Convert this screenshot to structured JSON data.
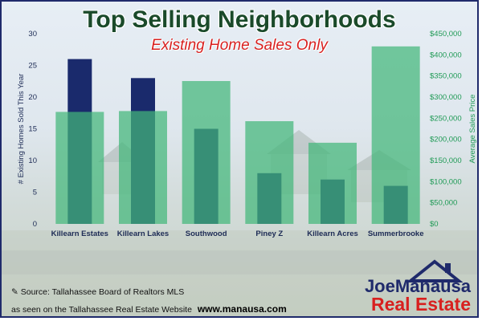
{
  "title": "Top Selling Neighborhoods",
  "subtitle": "Existing Home Sales Only",
  "source_line": "Source: Tallahassee Board of Realtors MLS",
  "seen_on_line": "as seen on the Tallahassee Real Estate Website",
  "website": "www.manausa.com",
  "logo": {
    "name": "JoeManausa",
    "sub": "Real Estate"
  },
  "colors": {
    "sales_bar": "#1a2a6c",
    "price_bar": "#43b77a",
    "left_axis": "#1d2b55",
    "right_axis": "#1f9a55",
    "title": "#1a4a2a",
    "subtitle": "#d8201f"
  },
  "chart_data": {
    "type": "bar",
    "categories": [
      "Killearn Estates",
      "Killearn Lakes",
      "Southwood",
      "Piney Z",
      "Killearn Acres",
      "Summerbrooke"
    ],
    "series": [
      {
        "axis": "left",
        "values": [
          26,
          23,
          15,
          8,
          7,
          6
        ]
      },
      {
        "axis": "right",
        "values": [
          265000,
          267000,
          338000,
          243000,
          192000,
          420000
        ]
      }
    ],
    "ylabel": "# Existing Homes Sold This Year",
    "ylabel_right": "Average Sales Price",
    "ylim": [
      0,
      30
    ],
    "ylim_right": [
      0,
      450000
    ],
    "yticks": [
      "0",
      "5",
      "10",
      "15",
      "20",
      "25",
      "30"
    ],
    "yticks_right": [
      "$0",
      "$50,000",
      "$100,000",
      "$150,000",
      "$200,000",
      "$250,000",
      "$300,000",
      "$350,000",
      "$400,000",
      "$450,000"
    ],
    "legend": "none",
    "grid": false
  }
}
